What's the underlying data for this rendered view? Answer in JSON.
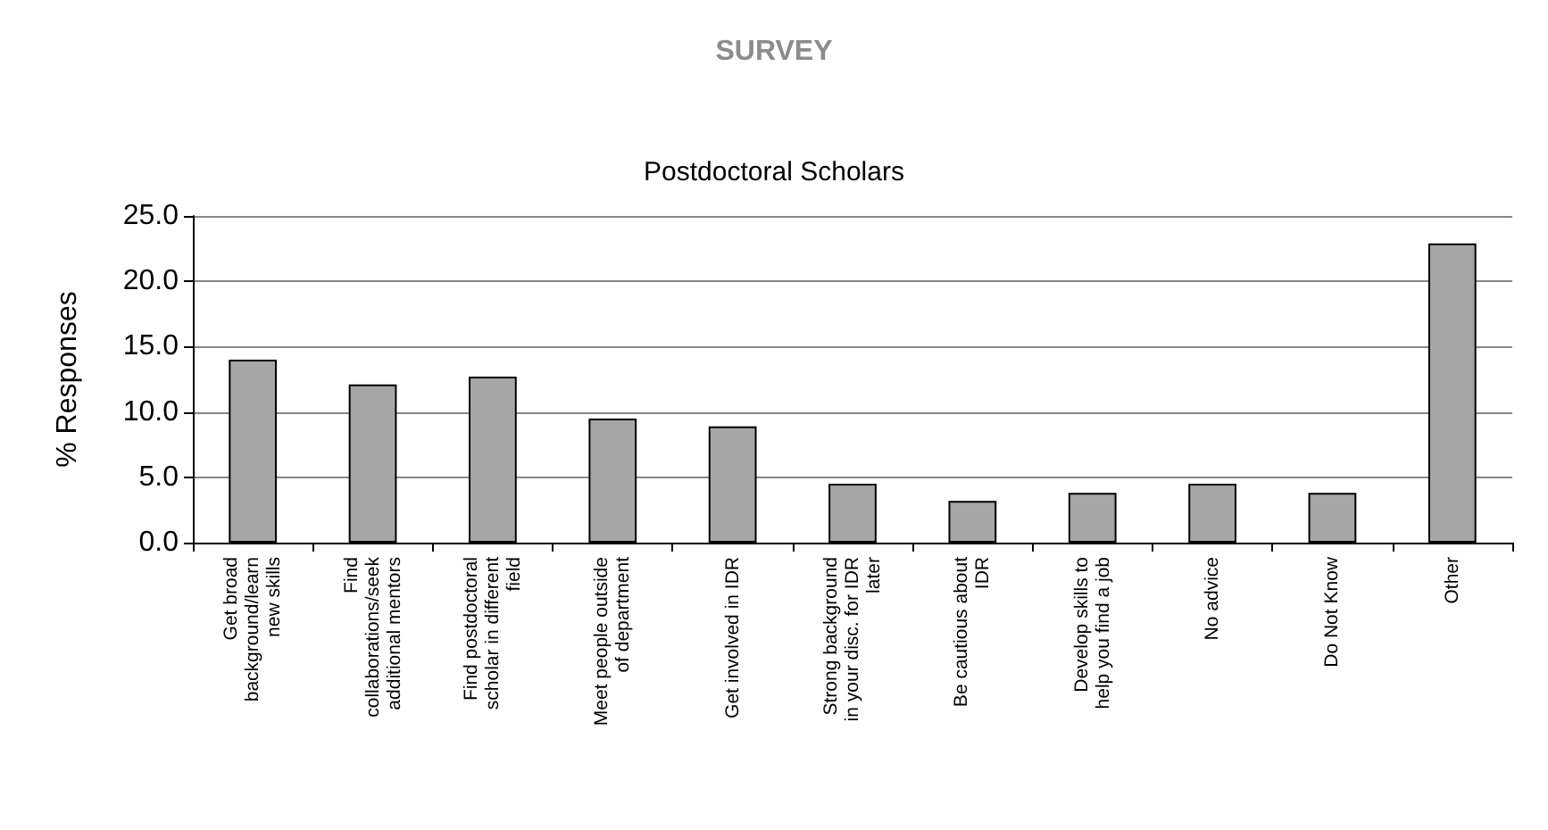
{
  "chart_data": {
    "type": "bar",
    "title": "SURVEY",
    "subtitle": "Postdoctoral Scholars",
    "ylabel": "% Responses",
    "categories": [
      "Get broad\nbackground/learn\nnew skills",
      "Find\ncollaborations/seek\nadditional mentors",
      "Find postdoctoral\nscholar in different\nfield",
      "Meet people outside\nof department",
      "Get involved in IDR",
      "Strong background\nin your disc. for IDR\nlater",
      "Be cautious about\nIDR",
      "Develop skills to\nhelp you find a job",
      "No advice",
      "Do Not Know",
      "Other"
    ],
    "values": [
      14.0,
      12.1,
      12.7,
      9.5,
      8.9,
      4.5,
      3.2,
      3.8,
      4.5,
      3.8,
      22.9
    ],
    "color": "#a6a6a6",
    "ylim": [
      0,
      25
    ],
    "yticks": [
      {
        "value": 0,
        "label": "0.0"
      },
      {
        "value": 5,
        "label": "5.0"
      },
      {
        "value": 10,
        "label": "10.0"
      },
      {
        "value": 15,
        "label": "15.0"
      },
      {
        "value": 20,
        "label": "20.0"
      },
      {
        "value": 25,
        "label": "25.0"
      }
    ],
    "grid": "y"
  }
}
